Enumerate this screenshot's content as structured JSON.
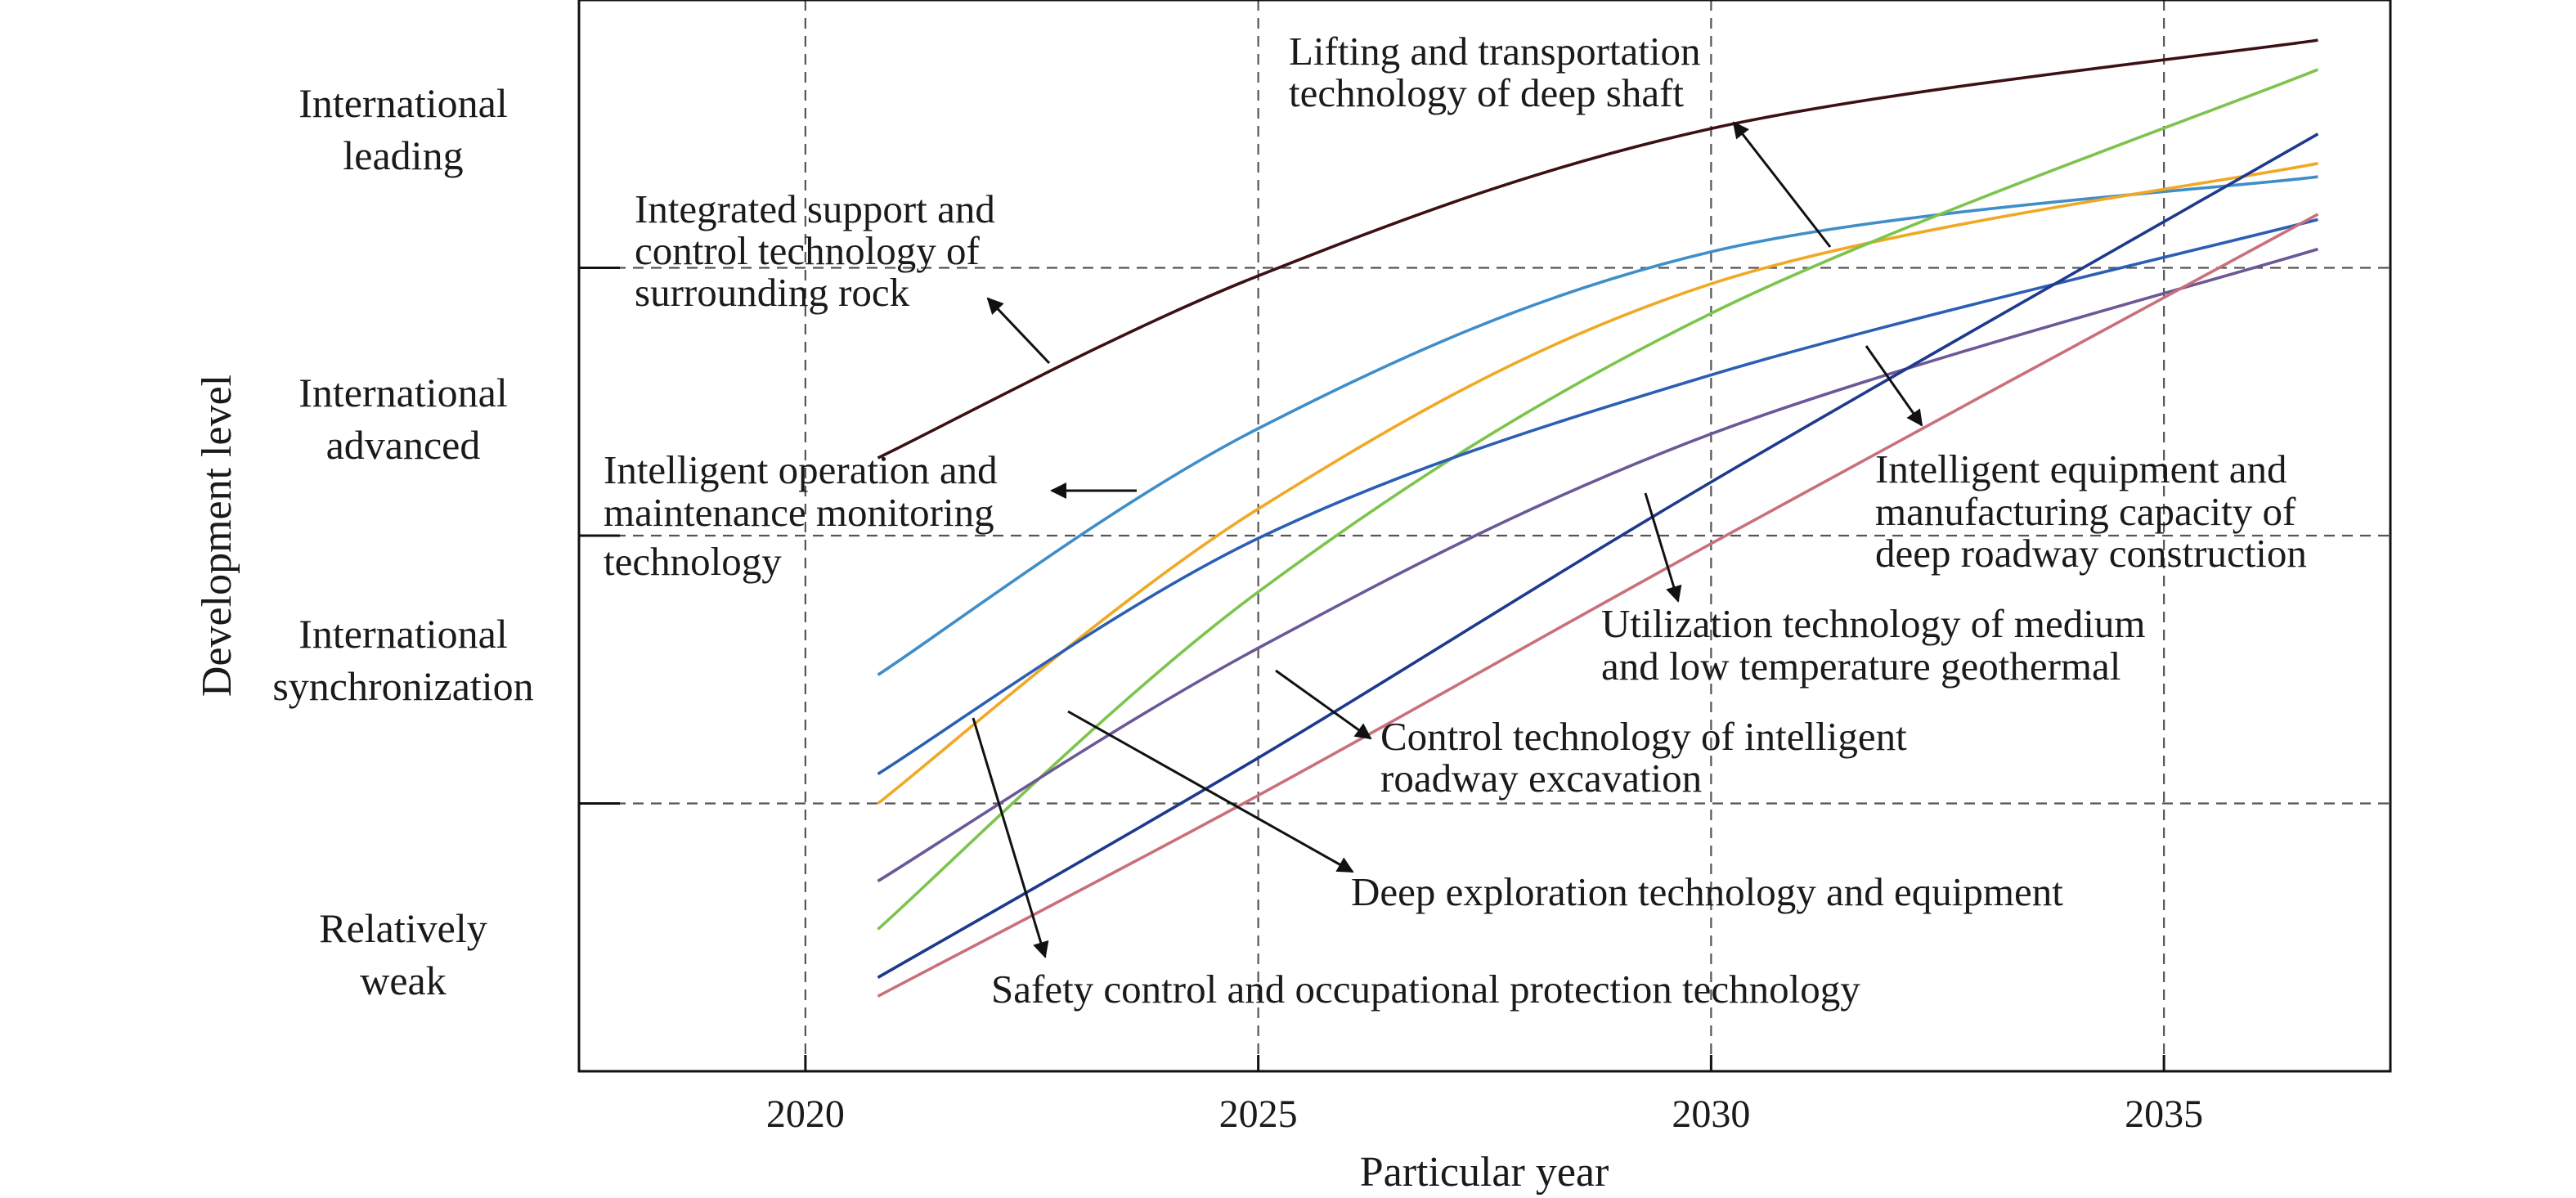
{
  "chart_data": {
    "type": "line",
    "xlabel": "Particular year",
    "ylabel": "Development level",
    "xlim": [
      2017.5,
      2037.5
    ],
    "ylim": [
      0,
      4
    ],
    "x_ticks": [
      2020,
      2025,
      2030,
      2035
    ],
    "y_categories": [
      {
        "label_lines": [
          "Relatively",
          "weak"
        ],
        "center": 0.5
      },
      {
        "label_lines": [
          "International",
          "synchronization"
        ],
        "center": 1.5
      },
      {
        "label_lines": [
          "International",
          "advanced"
        ],
        "center": 2.5
      },
      {
        "label_lines": [
          "International",
          "leading"
        ],
        "center": 3.5
      }
    ],
    "y_boundaries": [
      1,
      2,
      3
    ],
    "grid": true,
    "series": [
      {
        "name": "Integrated support and control technology of surrounding rock",
        "color": "#3c1014",
        "x": [
          2020.8,
          2025,
          2030,
          2036.7
        ],
        "y": [
          2.29,
          2.97,
          3.52,
          3.85
        ]
      },
      {
        "name": "Intelligent operation and maintenance monitoring technology",
        "color": "#3f8ec9",
        "x": [
          2020.8,
          2025,
          2030,
          2036.7
        ],
        "y": [
          1.48,
          2.4,
          3.06,
          3.34
        ]
      },
      {
        "name": "Lifting and transportation technology of deep shaft",
        "color": "#f0a825",
        "x": [
          2020.8,
          2025,
          2030,
          2036.7
        ],
        "y": [
          1.0,
          2.1,
          2.94,
          3.39
        ]
      },
      {
        "name": "Deep exploration technology and equipment",
        "color": "#7cc44c",
        "x": [
          2020.8,
          2025,
          2030,
          2036.7
        ],
        "y": [
          0.53,
          1.79,
          2.83,
          3.74
        ]
      },
      {
        "name": "Safety control and occupational protection technology",
        "color": "#2b5fb4",
        "x": [
          2020.8,
          2025,
          2030,
          2036.7
        ],
        "y": [
          1.11,
          1.99,
          2.6,
          3.18
        ]
      },
      {
        "name": "Intelligent equipment and manufacturing capacity of deep roadway construction",
        "color": "#6b5896",
        "x": [
          2020.8,
          2025,
          2030,
          2036.7
        ],
        "y": [
          0.71,
          1.58,
          2.38,
          3.07
        ]
      },
      {
        "name": "Control technology of intelligent roadway excavation",
        "color": "#1d3a8c",
        "x": [
          2020.8,
          2025,
          2030,
          2036.7
        ],
        "y": [
          0.35,
          1.17,
          2.2,
          3.5
        ]
      },
      {
        "name": "Utilization technology of medium and low temperature geothermal",
        "color": "#c9707a",
        "x": [
          2020.8,
          2025,
          2030,
          2036.7
        ],
        "y": [
          0.28,
          1.03,
          1.97,
          3.2
        ]
      }
    ],
    "annotations": [
      {
        "lines": [
          "Lifting and transportation",
          "technology of deep shaft"
        ]
      },
      {
        "lines": [
          "Integrated support and",
          "control technology of",
          "surrounding rock"
        ]
      },
      {
        "lines": [
          "Intelligent operation and",
          "maintenance monitoring",
          "technology"
        ]
      },
      {
        "lines": [
          "Intelligent equipment and",
          "manufacturing capacity of",
          "deep roadway construction"
        ]
      },
      {
        "lines": [
          "Utilization technology of medium",
          "and low temperature geothermal"
        ]
      },
      {
        "lines": [
          "Control technology of intelligent",
          "roadway excavation"
        ]
      },
      {
        "lines": [
          "Deep exploration technology and equipment"
        ]
      },
      {
        "lines": [
          "Safety control and occupational protection technology"
        ]
      }
    ]
  }
}
